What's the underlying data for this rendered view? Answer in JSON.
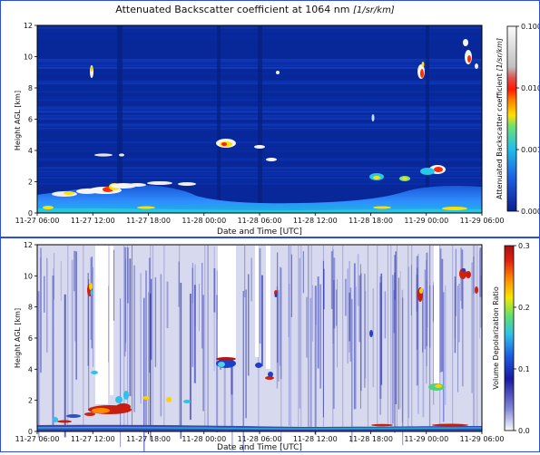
{
  "chart_data": [
    {
      "type": "heatmap",
      "title": "Attenuated Backscatter coefficient at 1064 nm",
      "title_unit": "[1/sr/km]",
      "xlabel": "Date and Time [UTC]",
      "ylabel": "Height AGL [km]",
      "colorbar_label": "Attenuated Backscatter coefficient",
      "colorbar_unit": "[1/sr/km]",
      "color_scale": "log",
      "ylim": [
        0,
        12
      ],
      "yticks": [
        "0",
        "2",
        "4",
        "6",
        "8",
        "10",
        "12"
      ],
      "xticks": [
        "11-27 06:00",
        "11-27 12:00",
        "11-27 18:00",
        "11-28 00:00",
        "11-28 06:00",
        "11-28 12:00",
        "11-28 18:00",
        "11-29 00:00",
        "11-29 06:00"
      ],
      "colorbar_ticks": [
        "0.000",
        "0.001",
        "0.010",
        "0.100"
      ],
      "colors": {
        "background": "#08289a",
        "low": "#0a2fb0",
        "boundary_layer": "#2b7fff",
        "mid": "#28c8e8",
        "high": "#ffe000",
        "peak": "#ff2000",
        "saturated": "#f4f4f4"
      }
    },
    {
      "type": "heatmap",
      "xlabel": "Date and Time [UTC]",
      "ylabel": "Height AGL [km]",
      "colorbar_label": "Volume Depolarization Ratio",
      "ylim": [
        0,
        12
      ],
      "yticks": [
        "0",
        "2",
        "4",
        "6",
        "8",
        "10",
        "12"
      ],
      "xticks": [
        "11-27 06:00",
        "11-27 12:00",
        "11-27 18:00",
        "11-28 00:00",
        "11-28 06:00",
        "11-28 12:00",
        "11-28 18:00",
        "11-29 00:00",
        "11-29 06:00"
      ],
      "colorbar_ticks": [
        "0.0",
        "0.1",
        "0.2",
        "0.3"
      ],
      "colorbar_range": [
        0.0,
        0.3
      ],
      "colors": {
        "background": "#d7d9ef",
        "low": "#4750c8",
        "mid": "#35c9e0",
        "high": "#ffd400",
        "peak": "#c81e10"
      }
    }
  ]
}
